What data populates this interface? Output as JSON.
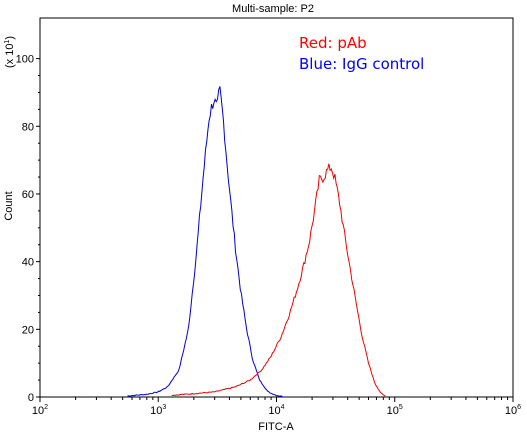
{
  "chart_data": {
    "type": "line",
    "title": "Multi-sample: P2",
    "xlabel": "FITC-A",
    "ylabel": "Count",
    "y_multiplier": "(x 10",
    "y_multiplier_exp": "1",
    "x_scale": "log",
    "xlim": [
      100,
      1000000
    ],
    "ylim": [
      0,
      112
    ],
    "x_ticks": [
      {
        "value": 100,
        "base": "10",
        "exp": "2"
      },
      {
        "value": 1000,
        "base": "10",
        "exp": "3"
      },
      {
        "value": 10000,
        "base": "10",
        "exp": "4"
      },
      {
        "value": 100000,
        "base": "10",
        "exp": "5"
      },
      {
        "value": 1000000,
        "base": "10",
        "exp": "6"
      }
    ],
    "y_ticks": [
      "0",
      "20",
      "40",
      "60",
      "80",
      "100"
    ],
    "grid": false,
    "legend_placement": "top-right",
    "annotations": [
      {
        "text": "Red: pAb",
        "color": "#ff0000"
      },
      {
        "text": "Blue: IgG control",
        "color": "#0000ff"
      }
    ],
    "series": [
      {
        "color": "#0000cc",
        "x": [
          550,
          800,
          1000,
          1200,
          1500,
          1800,
          2100,
          2400,
          2700,
          2950,
          3150,
          3300,
          3450,
          3600,
          3800,
          4100,
          4500,
          5000,
          5600,
          6300,
          7200,
          8500,
          10000,
          12000
        ],
        "y": [
          0.3,
          0.8,
          1.5,
          3,
          8,
          20,
          42,
          65,
          83,
          88,
          85,
          91,
          86,
          80,
          70,
          58,
          44,
          31,
          20,
          11,
          5,
          1.5,
          0.5,
          0
        ]
      },
      {
        "color": "#ee0000",
        "x": [
          1300,
          2000,
          3000,
          4500,
          6000,
          7500,
          9000,
          11000,
          13000,
          15000,
          17000,
          19000,
          21000,
          23000,
          25000,
          27000,
          29000,
          31000,
          34000,
          38000,
          42000,
          47000,
          53000,
          60000,
          68000,
          77000,
          85000
        ],
        "y": [
          0.5,
          1,
          1.5,
          3,
          5,
          8,
          12,
          18,
          25,
          32,
          39,
          46,
          55,
          64,
          65,
          67,
          68,
          65,
          58,
          47,
          38,
          28,
          18,
          10,
          4,
          1,
          0
        ]
      }
    ]
  }
}
